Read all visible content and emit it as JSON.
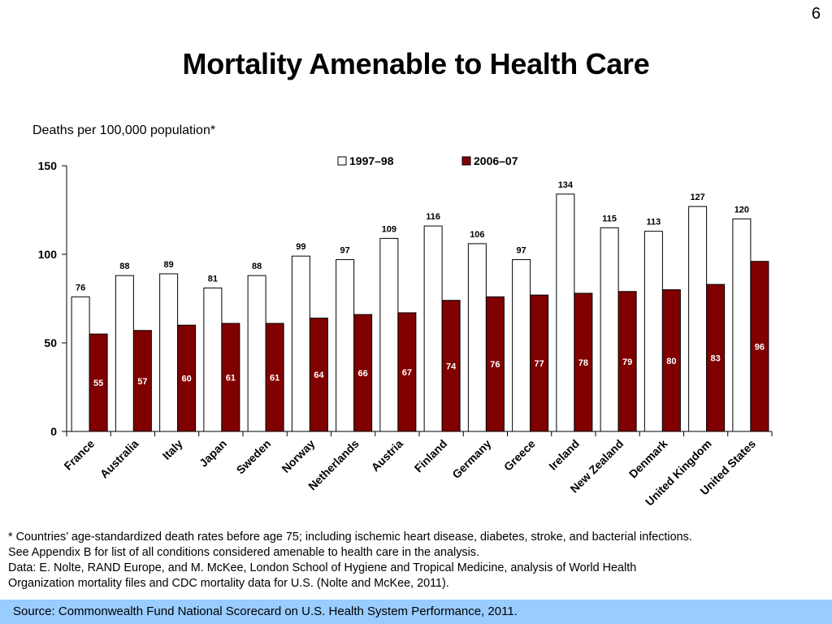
{
  "slide_number": "6",
  "title": "Mortality Amenable to Health Care",
  "subtitle": "Deaths per 100,000 population*",
  "chart_data": {
    "type": "bar",
    "categories": [
      "France",
      "Australia",
      "Italy",
      "Japan",
      "Sweden",
      "Norway",
      "Netherlands",
      "Austria",
      "Finland",
      "Germany",
      "Greece",
      "Ireland",
      "New Zealand",
      "Denmark",
      "United Kingdom",
      "United States"
    ],
    "series": [
      {
        "name": "1997–98",
        "color": "#ffffff",
        "values": [
          76,
          88,
          89,
          81,
          88,
          99,
          97,
          109,
          116,
          106,
          97,
          134,
          115,
          113,
          127,
          120
        ]
      },
      {
        "name": "2006–07",
        "color": "#800000",
        "values": [
          55,
          57,
          60,
          61,
          61,
          64,
          66,
          67,
          74,
          76,
          77,
          78,
          79,
          80,
          83,
          96
        ]
      }
    ],
    "yticks": [
      0,
      50,
      100,
      150
    ],
    "ylim": [
      0,
      150
    ],
    "legend": "top-center",
    "grid": false
  },
  "footnote": {
    "line1": "* Countries’ age-standardized death rates before age 75; including ischemic heart disease, diabetes, stroke, and bacterial infections.",
    "line2": "See Appendix B for list of all conditions considered amenable to health care in the analysis.",
    "line3": "Data: E. Nolte, RAND Europe, and M. McKee, London School of Hygiene and Tropical Medicine, analysis of World Health",
    "line4": "Organization mortality files and CDC mortality data for U.S. (Nolte and McKee, 2011)."
  },
  "source": "Source: Commonwealth Fund National Scorecard on U.S. Health System Performance, 2011."
}
